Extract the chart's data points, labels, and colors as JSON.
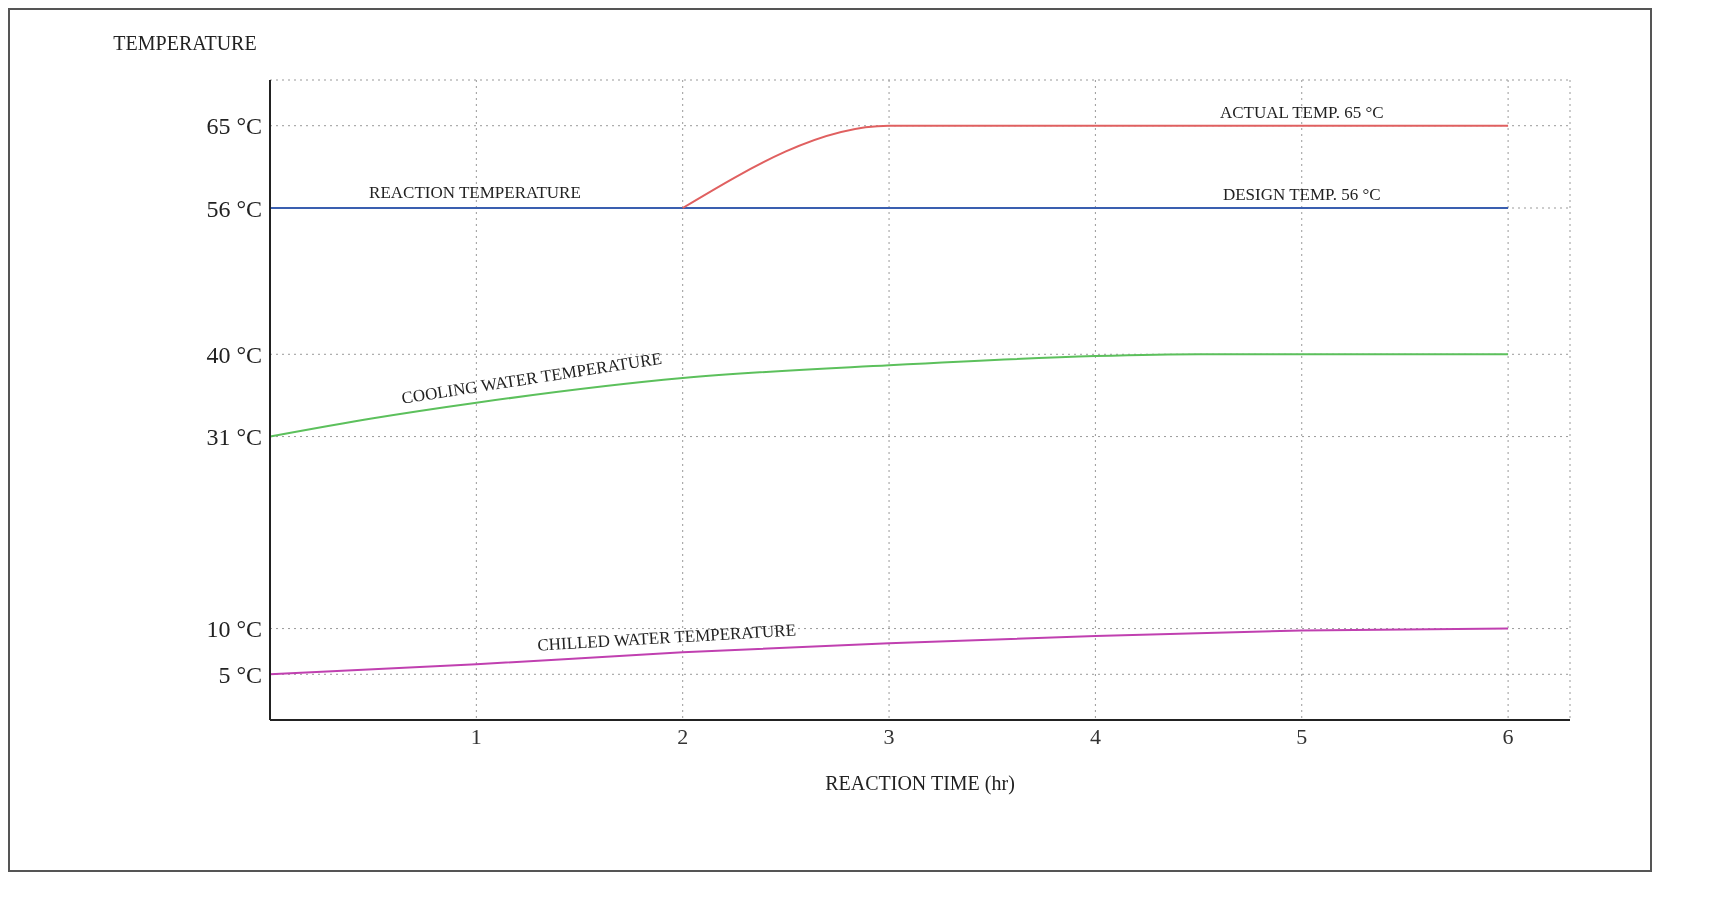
{
  "chart_data": {
    "type": "line",
    "xlabel": "REACTION TIME (hr)",
    "ylabel": "TEMPERATURE",
    "xlim": [
      0,
      6.3
    ],
    "xticks": [
      1,
      2,
      3,
      4,
      5,
      6
    ],
    "ylim": [
      0,
      70
    ],
    "yticks": [
      {
        "value": 5,
        "label": "5 °C"
      },
      {
        "value": 10,
        "label": "10 °C"
      },
      {
        "value": 31,
        "label": "31 °C"
      },
      {
        "value": 40,
        "label": "40 °C"
      },
      {
        "value": 56,
        "label": "56 °C"
      },
      {
        "value": 65,
        "label": "65 °C"
      }
    ],
    "grid": true,
    "legend": false,
    "marker": "none",
    "line_style": "solid",
    "series": [
      {
        "name": "REACTION TEMPERATURE",
        "color": "#3a5fb0",
        "x": [
          0,
          6
        ],
        "values": [
          56,
          56
        ]
      },
      {
        "color": "#e06060",
        "x": [
          2,
          3,
          6
        ],
        "values": [
          56,
          65,
          65
        ]
      },
      {
        "name": "COOLING WATER TEMPERATURE",
        "color": "#5cc05c",
        "x": [
          0,
          0.5,
          1,
          2,
          3,
          4,
          4.5,
          5,
          6
        ],
        "values": [
          31,
          33,
          34.7,
          37.4,
          38.8,
          39.8,
          40,
          40,
          40
        ]
      },
      {
        "name": "CHILLED WATER TEMPERATURE",
        "color": "#c040b0",
        "x": [
          0,
          1,
          2,
          3,
          4,
          5,
          6
        ],
        "values": [
          5,
          6.1,
          7.4,
          8.4,
          9.2,
          9.8,
          10
        ]
      }
    ],
    "annotations": [
      {
        "text": "ACTUAL TEMP. 65 °C",
        "x": 5,
        "y": 65
      },
      {
        "text": "DESIGN TEMP. 56 °C",
        "x": 5,
        "y": 56
      }
    ]
  }
}
